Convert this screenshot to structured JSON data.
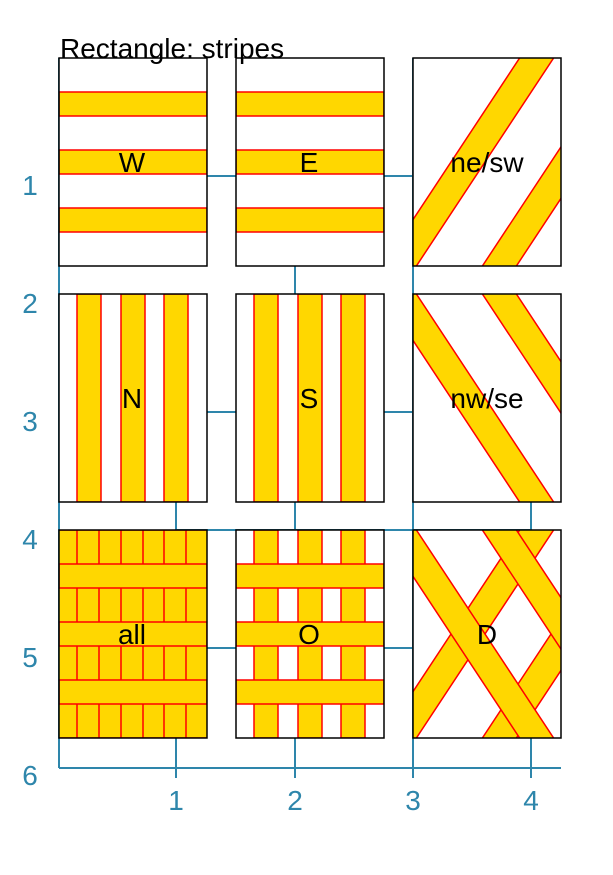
{
  "title": "Rectangle: stripes",
  "colors": {
    "stripe_fill": "#FFD700",
    "stripe_stroke": "#FF0000",
    "axis": "#2E86AB",
    "panel_border": "#000000"
  },
  "axes": {
    "x_ticks": [
      "1",
      "2",
      "3",
      "4"
    ],
    "y_ticks": [
      "1",
      "2",
      "3",
      "4",
      "5",
      "6"
    ]
  },
  "panels": [
    {
      "label": "W",
      "pattern": "horizontal"
    },
    {
      "label": "E",
      "pattern": "horizontal"
    },
    {
      "label": "ne/sw",
      "pattern": "diag-ne"
    },
    {
      "label": "N",
      "pattern": "vertical"
    },
    {
      "label": "S",
      "pattern": "vertical"
    },
    {
      "label": "nw/se",
      "pattern": "diag-nw"
    },
    {
      "label": "all",
      "pattern": "all"
    },
    {
      "label": "O",
      "pattern": "grid"
    },
    {
      "label": "D",
      "pattern": "diamond"
    }
  ]
}
